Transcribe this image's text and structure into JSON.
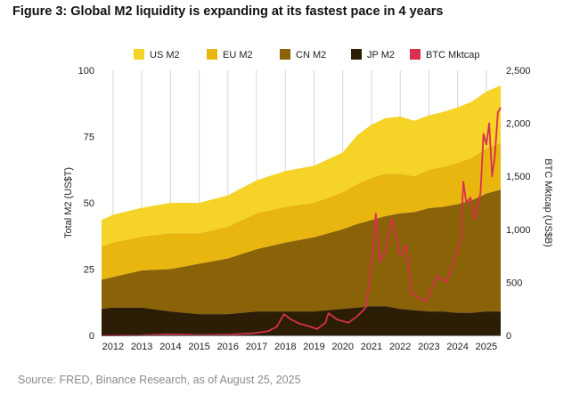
{
  "title": "Figure 3: Global M2 liquidity is expanding at its fastest pace in 4 years",
  "source": "Source: FRED, Binance Research, as of August 25, 2025",
  "chart_data": {
    "type": "area",
    "stacked": true,
    "title": "Figure 3: Global M2 liquidity is expanding at its fastest pace in 4 years",
    "ylabel": "Total M2 (US$T)",
    "y2label": "BTC Mktcap (US$B)",
    "ylim": [
      0,
      100
    ],
    "y2lim": [
      0,
      2500
    ],
    "yticks": [
      0,
      25,
      50,
      75,
      100
    ],
    "y2ticks": [
      0,
      500,
      1000,
      1500,
      2000,
      2500
    ],
    "y2ticklabels": [
      "0",
      "500",
      "1,000",
      "1,500",
      "2,000",
      "2,500"
    ],
    "xlim": [
      2011.6,
      2025.5
    ],
    "xticks": [
      2012,
      2013,
      2014,
      2015,
      2016,
      2017,
      2018,
      2019,
      2020,
      2021,
      2022,
      2023,
      2024,
      2025
    ],
    "grid": "vertical",
    "legend_position": "top",
    "series": [
      {
        "name": "US M2",
        "color": "#f5d327",
        "axis": "left",
        "kind": "area",
        "x": [
          2011.6,
          2012,
          2013,
          2014,
          2015,
          2016,
          2017,
          2018,
          2019,
          2020,
          2020.5,
          2021,
          2021.5,
          2022,
          2022.5,
          2023,
          2023.5,
          2024,
          2024.5,
          2025,
          2025.5
        ],
        "values": [
          10,
          10.5,
          10.8,
          11.5,
          11.5,
          11.8,
          12.5,
          13.5,
          14,
          15,
          18.5,
          20,
          21,
          21.5,
          21,
          20.5,
          20.8,
          21,
          21.2,
          21.5,
          21.8
        ]
      },
      {
        "name": "EU M2",
        "color": "#e8b60f",
        "axis": "left",
        "kind": "area",
        "x": [
          2011.6,
          2012,
          2013,
          2014,
          2015,
          2016,
          2017,
          2018,
          2019,
          2020,
          2020.5,
          2021,
          2021.5,
          2022,
          2022.5,
          2023,
          2023.5,
          2024,
          2024.5,
          2025,
          2025.5
        ],
        "values": [
          12.5,
          13,
          12.8,
          13.5,
          11.5,
          12,
          13.5,
          13.5,
          13,
          14,
          15,
          16,
          16,
          15,
          13.5,
          14.5,
          15,
          15.5,
          16,
          17,
          17.5
        ]
      },
      {
        "name": "CN M2",
        "color": "#8a6207",
        "axis": "left",
        "kind": "area",
        "x": [
          2011.6,
          2012,
          2013,
          2014,
          2015,
          2016,
          2017,
          2018,
          2019,
          2020,
          2020.5,
          2021,
          2021.5,
          2022,
          2022.5,
          2023,
          2023.5,
          2024,
          2024.5,
          2025,
          2025.5
        ],
        "values": [
          11,
          11.5,
          14,
          16,
          19,
          21,
          23.5,
          26,
          28,
          30,
          31.5,
          32.5,
          34,
          36,
          37,
          39,
          39.5,
          41,
          42.5,
          44.5,
          46
        ]
      },
      {
        "name": "JP M2",
        "color": "#2b1d06",
        "axis": "left",
        "kind": "area",
        "x": [
          2011.6,
          2012,
          2013,
          2014,
          2015,
          2016,
          2017,
          2018,
          2019,
          2020,
          2020.5,
          2021,
          2021.5,
          2022,
          2022.5,
          2023,
          2023.5,
          2024,
          2024.5,
          2025,
          2025.5
        ],
        "values": [
          10,
          10.5,
          10.5,
          9,
          8,
          8,
          9,
          9,
          9,
          10,
          10.5,
          11,
          11,
          10,
          9.5,
          9,
          9,
          8.5,
          8.5,
          9,
          9
        ]
      },
      {
        "name": "BTC Mktcap",
        "color": "#d9304f",
        "axis": "right",
        "kind": "line",
        "x": [
          2011.6,
          2013,
          2013.9,
          2014.5,
          2015,
          2016,
          2016.9,
          2017.4,
          2017.7,
          2017.95,
          2018.2,
          2018.5,
          2018.9,
          2019.1,
          2019.4,
          2019.5,
          2019.8,
          2020.2,
          2020.5,
          2020.8,
          2021.0,
          2021.15,
          2021.3,
          2021.5,
          2021.7,
          2021.85,
          2022.0,
          2022.2,
          2022.4,
          2022.6,
          2022.9,
          2023.1,
          2023.3,
          2023.6,
          2023.9,
          2024.1,
          2024.2,
          2024.3,
          2024.45,
          2024.6,
          2024.8,
          2024.9,
          2025.0,
          2025.1,
          2025.2,
          2025.3,
          2025.4,
          2025.5
        ],
        "values": [
          0,
          2,
          10,
          8,
          4,
          8,
          20,
          40,
          80,
          200,
          150,
          110,
          80,
          60,
          120,
          210,
          150,
          120,
          180,
          260,
          650,
          1150,
          700,
          800,
          1100,
          950,
          750,
          850,
          400,
          360,
          320,
          450,
          560,
          500,
          720,
          900,
          1450,
          1250,
          1300,
          1100,
          1350,
          1900,
          1800,
          2000,
          1500,
          1700,
          2100,
          2150
        ]
      }
    ]
  }
}
